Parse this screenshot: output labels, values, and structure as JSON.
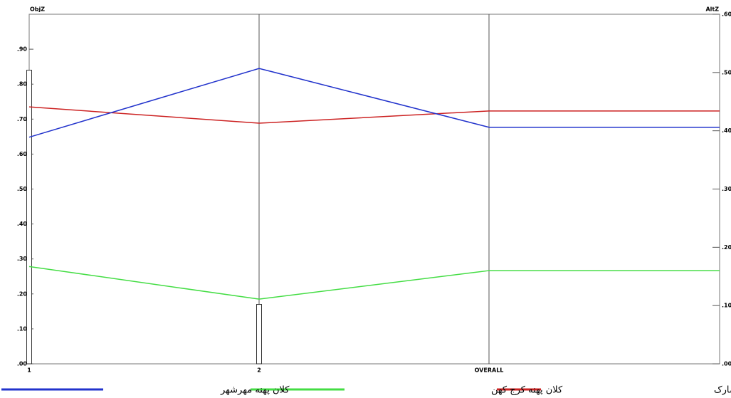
{
  "chart_data": {
    "type": "line",
    "y_label": "ObjZ",
    "y2_label": "AltZ",
    "categories": [
      "1",
      "2",
      "OVERALL"
    ],
    "objective_weights": [
      0.84,
      0.17,
      null
    ],
    "bar_color": "#ffffff",
    "series": [
      {
        "name": "کلان پهنه حصارک",
        "color": "#cc2222",
        "axis": "y2",
        "values": [
          0.441,
          0.413,
          0.434
        ]
      },
      {
        "name": "کلان پهنه کرج کهن",
        "color": "#44dd44",
        "axis": "y2",
        "values": [
          0.167,
          0.111,
          0.16
        ]
      },
      {
        "name": "کلان پهنه مهرشهر",
        "color": "#2233cc",
        "axis": "y2",
        "values": [
          0.389,
          0.507,
          0.406
        ]
      }
    ],
    "ylim": [
      0,
      1
    ],
    "yticks": [
      {
        "value": 0,
        "label": ".00"
      },
      {
        "value": 0.1,
        "label": ".10"
      },
      {
        "value": 0.2,
        "label": ".20"
      },
      {
        "value": 0.3,
        "label": ".30"
      },
      {
        "value": 0.4,
        "label": ".40"
      },
      {
        "value": 0.5,
        "label": ".50"
      },
      {
        "value": 0.6,
        "label": ".60"
      },
      {
        "value": 0.7,
        "label": ".70"
      },
      {
        "value": 0.8,
        "label": ".80"
      },
      {
        "value": 0.9,
        "label": ".90"
      }
    ],
    "y2lim": [
      0,
      0.6
    ],
    "y2ticks": [
      {
        "value": 0,
        "label": ".00"
      },
      {
        "value": 0.1,
        "label": ".10"
      },
      {
        "value": 0.2,
        "label": ".20"
      },
      {
        "value": 0.3,
        "label": ".30"
      },
      {
        "value": 0.4,
        "label": ".40"
      },
      {
        "value": 0.5,
        "label": ".50"
      },
      {
        "value": 0.6,
        "label": ".60"
      }
    ]
  }
}
